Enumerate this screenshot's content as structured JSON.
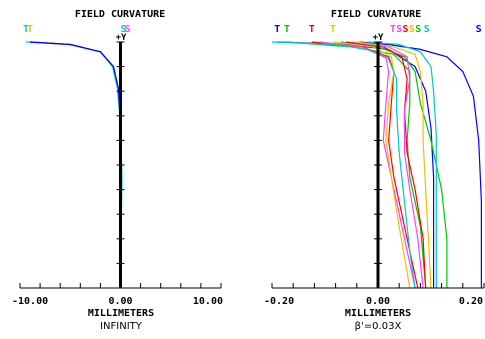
{
  "chart_data": [
    {
      "type": "line",
      "title": "FIELD CURVATURE",
      "y_axis_label": "+Y",
      "xlabel": "MILLIMETERS",
      "caption": "INFINITY",
      "xlim": [
        -10,
        10
      ],
      "ylim": [
        0,
        1
      ],
      "x_tick_labels": [
        "-10.00",
        "0.00",
        "10.00"
      ],
      "x_tick_values": [
        -10,
        0,
        10
      ],
      "ts_labels": [
        {
          "text": "T",
          "color": "#00c8c8",
          "x": -9.4
        },
        {
          "text": "T",
          "color": "#f0c000",
          "x": -9.0
        },
        {
          "text": "S",
          "color": "#00c8c8",
          "x": 0.3
        },
        {
          "text": "S",
          "color": "#ff40ff",
          "x": 0.7
        }
      ],
      "series": [
        {
          "color": "#ff0000",
          "points": [
            [
              -9.0,
              1.0
            ],
            [
              -5.0,
              0.99
            ],
            [
              -2.0,
              0.96
            ],
            [
              -0.7,
              0.9
            ],
            [
              -0.2,
              0.8
            ],
            [
              0.0,
              0.65
            ],
            [
              0.05,
              0.45
            ],
            [
              0.0,
              0.2
            ],
            [
              0.0,
              0.0
            ]
          ]
        },
        {
          "color": "#ff40ff",
          "points": [
            [
              -9.0,
              1.0
            ],
            [
              -5.0,
              0.99
            ],
            [
              -2.0,
              0.96
            ],
            [
              -0.7,
              0.9
            ],
            [
              -0.2,
              0.81
            ],
            [
              0.0,
              0.66
            ],
            [
              0.1,
              0.45
            ],
            [
              0.05,
              0.2
            ],
            [
              0.0,
              0.0
            ]
          ]
        },
        {
          "color": "#00c800",
          "points": [
            [
              -9.0,
              1.0
            ],
            [
              -5.0,
              0.99
            ],
            [
              -2.0,
              0.96
            ],
            [
              -0.7,
              0.9
            ],
            [
              -0.2,
              0.81
            ],
            [
              0.0,
              0.66
            ],
            [
              0.1,
              0.45
            ],
            [
              0.05,
              0.2
            ],
            [
              0.0,
              0.0
            ]
          ]
        },
        {
          "color": "#f0c000",
          "points": [
            [
              -9.0,
              1.0
            ],
            [
              -5.0,
              0.99
            ],
            [
              -2.0,
              0.96
            ],
            [
              -0.7,
              0.9
            ],
            [
              -0.2,
              0.81
            ],
            [
              0.0,
              0.66
            ],
            [
              0.1,
              0.45
            ],
            [
              0.05,
              0.2
            ],
            [
              0.0,
              0.0
            ]
          ]
        },
        {
          "color": "#00c8c8",
          "points": [
            [
              -9.4,
              1.0
            ],
            [
              -5.0,
              0.99
            ],
            [
              -2.0,
              0.96
            ],
            [
              -0.8,
              0.9
            ],
            [
              -0.3,
              0.81
            ],
            [
              0.0,
              0.66
            ],
            [
              0.15,
              0.45
            ],
            [
              0.05,
              0.2
            ],
            [
              0.0,
              0.0
            ]
          ]
        },
        {
          "color": "#0000ff",
          "points": [
            [
              -9.0,
              1.0
            ],
            [
              -5.0,
              0.99
            ],
            [
              -2.0,
              0.96
            ],
            [
              -0.7,
              0.9
            ],
            [
              -0.2,
              0.81
            ],
            [
              0.0,
              0.66
            ],
            [
              0.05,
              0.45
            ],
            [
              0.0,
              0.2
            ],
            [
              0.0,
              0.0
            ]
          ]
        }
      ]
    },
    {
      "type": "line",
      "title": "FIELD CURVATURE",
      "y_axis_label": "+Y",
      "xlabel": "MILLIMETERS",
      "caption": "β'=0.03X",
      "xlim": [
        -0.2,
        0.2
      ],
      "ylim": [
        0,
        1
      ],
      "x_tick_labels": [
        "-0.20",
        "0.00",
        "0.20"
      ],
      "x_tick_values": [
        -0.2,
        0,
        0.2
      ],
      "ts_labels": [
        {
          "text": "T",
          "color": "#0000ff",
          "x": -0.19
        },
        {
          "text": "T",
          "color": "#00c800",
          "x": -0.172
        },
        {
          "text": "T",
          "color": "#ff0000",
          "x": -0.125
        },
        {
          "text": "T",
          "color": "#f0c000",
          "x": -0.085
        },
        {
          "text": "T",
          "color": "#ff40ff",
          "x": 0.028
        },
        {
          "text": "S",
          "color": "#ff40ff",
          "x": 0.04
        },
        {
          "text": "S",
          "color": "#ff0000",
          "x": 0.052
        },
        {
          "text": "S",
          "color": "#f0c000",
          "x": 0.064
        },
        {
          "text": "S",
          "color": "#00c800",
          "x": 0.076
        },
        {
          "text": "S",
          "color": "#00c8c8",
          "x": 0.092
        },
        {
          "text": "S",
          "color": "#0000ff",
          "x": 0.19
        }
      ],
      "series": [
        {
          "color": "#0000ff",
          "points": [
            [
              -0.19,
              1.0
            ],
            [
              -0.06,
              0.99
            ],
            [
              0.02,
              0.97
            ],
            [
              0.07,
              0.9
            ],
            [
              0.09,
              0.8
            ],
            [
              0.1,
              0.65
            ],
            [
              0.105,
              0.45
            ],
            [
              0.105,
              0.2
            ],
            [
              0.105,
              0.0
            ]
          ]
        },
        {
          "color": "#0000ff",
          "points": [
            [
              -0.035,
              1.0
            ],
            [
              0.02,
              0.99
            ],
            [
              0.08,
              0.97
            ],
            [
              0.13,
              0.94
            ],
            [
              0.16,
              0.88
            ],
            [
              0.18,
              0.78
            ],
            [
              0.19,
              0.6
            ],
            [
              0.195,
              0.35
            ],
            [
              0.195,
              0.0
            ]
          ]
        },
        {
          "color": "#00c800",
          "points": [
            [
              -0.172,
              1.0
            ],
            [
              -0.05,
              0.98
            ],
            [
              0.03,
              0.95
            ],
            [
              0.06,
              0.88
            ],
            [
              0.06,
              0.75
            ],
            [
              0.055,
              0.6
            ],
            [
              0.06,
              0.45
            ],
            [
              0.08,
              0.25
            ],
            [
              0.09,
              0.0
            ]
          ]
        },
        {
          "color": "#00c800",
          "points": [
            [
              -0.07,
              1.0
            ],
            [
              0.0,
              0.98
            ],
            [
              0.05,
              0.94
            ],
            [
              0.07,
              0.88
            ],
            [
              0.08,
              0.75
            ],
            [
              0.1,
              0.6
            ],
            [
              0.12,
              0.4
            ],
            [
              0.13,
              0.2
            ],
            [
              0.13,
              0.0
            ]
          ]
        },
        {
          "color": "#ff0000",
          "points": [
            [
              -0.125,
              1.0
            ],
            [
              -0.03,
              0.98
            ],
            [
              0.02,
              0.94
            ],
            [
              0.03,
              0.88
            ],
            [
              0.025,
              0.75
            ],
            [
              0.02,
              0.6
            ],
            [
              0.03,
              0.45
            ],
            [
              0.05,
              0.25
            ],
            [
              0.075,
              0.0
            ]
          ]
        },
        {
          "color": "#ff0000",
          "points": [
            [
              -0.06,
              1.0
            ],
            [
              0.01,
              0.98
            ],
            [
              0.045,
              0.94
            ],
            [
              0.055,
              0.85
            ],
            [
              0.05,
              0.72
            ],
            [
              0.055,
              0.55
            ],
            [
              0.07,
              0.4
            ],
            [
              0.085,
              0.2
            ],
            [
              0.09,
              0.0
            ]
          ]
        },
        {
          "color": "#ff40ff",
          "points": [
            [
              -0.11,
              1.0
            ],
            [
              -0.03,
              0.98
            ],
            [
              0.015,
              0.94
            ],
            [
              0.02,
              0.88
            ],
            [
              0.015,
              0.75
            ],
            [
              0.01,
              0.6
            ],
            [
              0.025,
              0.45
            ],
            [
              0.045,
              0.25
            ],
            [
              0.07,
              0.0
            ]
          ]
        },
        {
          "color": "#ff40ff",
          "points": [
            [
              -0.05,
              1.0
            ],
            [
              0.02,
              0.98
            ],
            [
              0.055,
              0.94
            ],
            [
              0.06,
              0.85
            ],
            [
              0.05,
              0.72
            ],
            [
              0.05,
              0.55
            ],
            [
              0.06,
              0.4
            ],
            [
              0.075,
              0.2
            ],
            [
              0.085,
              0.0
            ]
          ]
        },
        {
          "color": "#f0c000",
          "points": [
            [
              -0.085,
              1.0
            ],
            [
              -0.01,
              0.98
            ],
            [
              0.025,
              0.94
            ],
            [
              0.03,
              0.88
            ],
            [
              0.02,
              0.75
            ],
            [
              0.015,
              0.6
            ],
            [
              0.025,
              0.45
            ],
            [
              0.04,
              0.25
            ],
            [
              0.06,
              0.0
            ]
          ]
        },
        {
          "color": "#f0c000",
          "points": [
            [
              -0.04,
              1.0
            ],
            [
              0.03,
              0.98
            ],
            [
              0.07,
              0.95
            ],
            [
              0.08,
              0.88
            ],
            [
              0.085,
              0.75
            ],
            [
              0.085,
              0.6
            ],
            [
              0.09,
              0.4
            ],
            [
              0.095,
              0.2
            ],
            [
              0.1,
              0.0
            ]
          ]
        },
        {
          "color": "#00c8c8",
          "points": [
            [
              -0.2,
              1.0
            ],
            [
              -0.08,
              0.99
            ],
            [
              -0.02,
              0.97
            ],
            [
              0.02,
              0.93
            ],
            [
              0.035,
              0.85
            ],
            [
              0.035,
              0.72
            ],
            [
              0.04,
              0.55
            ],
            [
              0.05,
              0.35
            ],
            [
              0.06,
              0.15
            ],
            [
              0.07,
              0.0
            ]
          ]
        },
        {
          "color": "#00c8c8",
          "points": [
            [
              -0.02,
              1.0
            ],
            [
              0.04,
              0.99
            ],
            [
              0.08,
              0.96
            ],
            [
              0.1,
              0.9
            ],
            [
              0.105,
              0.8
            ],
            [
              0.11,
              0.62
            ],
            [
              0.11,
              0.4
            ],
            [
              0.11,
              0.0
            ]
          ]
        }
      ]
    }
  ]
}
